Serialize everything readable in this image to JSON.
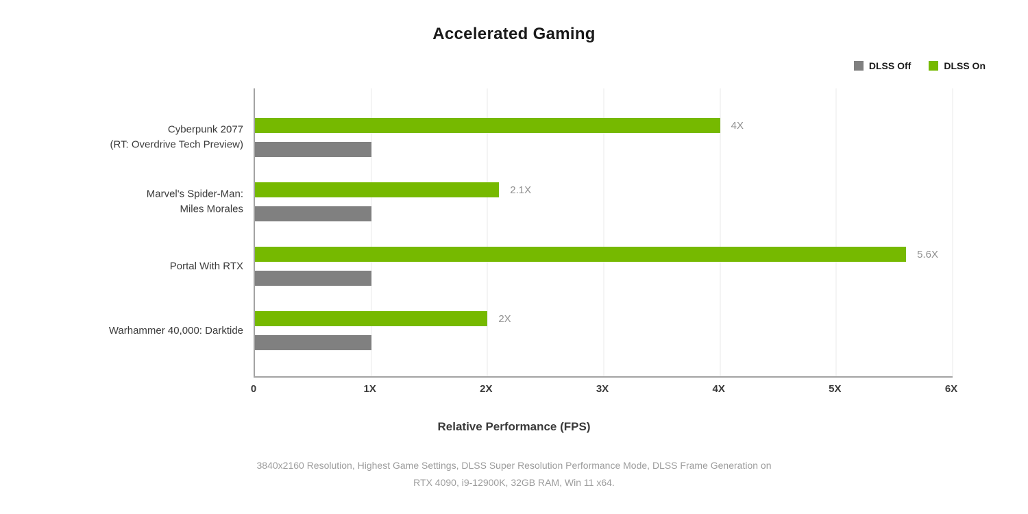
{
  "chart_data": {
    "type": "bar",
    "orientation": "horizontal",
    "title": "Accelerated Gaming",
    "xlabel": "Relative Performance (FPS)",
    "categories": [
      "Cyberpunk 2077\n(RT: Overdrive Tech Preview)",
      "Marvel's Spider-Man:\nMiles Morales",
      "Portal With RTX",
      "Warhammer 40,000: Darktide"
    ],
    "series": [
      {
        "name": "DLSS Off",
        "color": "#808080",
        "values": [
          1,
          1,
          1,
          1
        ],
        "labels": [
          "",
          "",
          "",
          ""
        ]
      },
      {
        "name": "DLSS On",
        "color": "#76b900",
        "values": [
          4,
          2.1,
          5.6,
          2
        ],
        "labels": [
          "4X",
          "2.1X",
          "5.6X",
          "2X"
        ]
      }
    ],
    "bar_order_in_group": [
      "DLSS On",
      "DLSS Off"
    ],
    "xlim": [
      0,
      6
    ],
    "xticks": [
      0,
      1,
      2,
      3,
      4,
      5,
      6
    ],
    "xtick_labels": [
      "0",
      "1X",
      "2X",
      "3X",
      "4X",
      "5X",
      "6X"
    ],
    "grid": true,
    "legend_position": "top-right"
  },
  "footnote": {
    "line1": "3840x2160 Resolution, Highest Game Settings, DLSS Super Resolution Performance Mode, DLSS Frame Generation on",
    "line2": "RTX 4090, i9-12900K, 32GB RAM, Win 11 x64."
  },
  "colors": {
    "dlss_on": "#76b900",
    "dlss_off": "#808080",
    "gridline": "#e8e8e8",
    "axis": "#a3a3a3",
    "title_text": "#1a1a1a",
    "tick_text": "#3a3a3a",
    "bar_label_text": "#8f8f8f",
    "footnote_text": "#9c9c9c",
    "background": "#ffffff"
  }
}
